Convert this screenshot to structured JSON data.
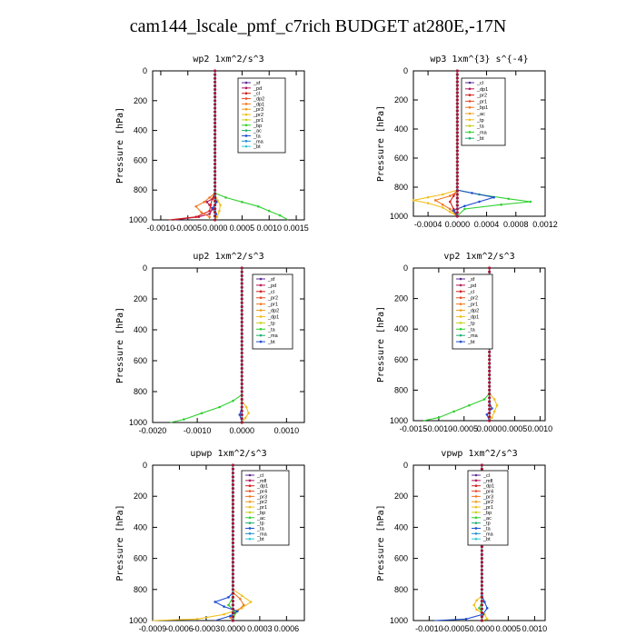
{
  "title": "cam144_lscale_pmf_c7rich  BUDGET at280E,-17N",
  "chart_data": [
    {
      "type": "line",
      "title": "wp2   1xm^2/s^3",
      "ylabel": "Pressure [hPa]",
      "ylim": [
        1000,
        0
      ],
      "yticks": [
        0,
        200,
        400,
        600,
        800,
        1000
      ],
      "xlim": [
        -0.00115,
        0.00165
      ],
      "xticks": [
        -0.001,
        -0.0005,
        0.0,
        0.0005,
        0.001,
        0.0015
      ],
      "xticklabels": [
        "-0.0010",
        "-0.0005",
        "0.0000",
        "0.0005",
        "0.0010",
        "0.0015"
      ],
      "legend": [
        "_sf",
        "_pd",
        "_cl",
        "_dp2",
        "_dp1",
        "_pr3",
        "_pr2",
        "_pr1",
        "_bp",
        "_ac",
        "_ta",
        "_ma",
        "_bt"
      ],
      "series": [
        {
          "name": "_sf",
          "color": "#5a2d91",
          "pressure": [
            0,
            820,
            860,
            900,
            940,
            970,
            1000
          ],
          "x": [
            0,
            0,
            0,
            0,
            0,
            0,
            0
          ]
        },
        {
          "name": "_pd",
          "color": "#b4185c",
          "pressure": [
            0,
            820,
            860,
            880,
            900,
            930,
            960,
            980,
            1000
          ],
          "x": [
            0,
            0,
            -5e-05,
            -0.00015,
            -0.0001,
            -5e-05,
            -0.0001,
            -0.0003,
            -0.00075
          ]
        },
        {
          "name": "_cl",
          "color": "#d42020",
          "pressure": [
            0,
            820,
            860,
            900,
            940,
            980,
            1000
          ],
          "x": [
            0,
            0,
            -5e-05,
            -8e-05,
            -0.0001,
            -0.00035,
            -0.00085
          ]
        },
        {
          "name": "_dp2",
          "color": "#f07820",
          "pressure": [
            0,
            820,
            850,
            880,
            910,
            950,
            980,
            1000
          ],
          "x": [
            0,
            0,
            -0.0001,
            -0.0002,
            -0.00035,
            -0.00025,
            -0.0001,
            -0.0001
          ]
        },
        {
          "name": "_pr2",
          "color": "#f0c020",
          "pressure": [
            0,
            830,
            870,
            900,
            940,
            980,
            1000
          ],
          "x": [
            0,
            0,
            5e-05,
            0.0001,
            8e-05,
            4e-05,
            0
          ]
        },
        {
          "name": "_bp",
          "color": "#30d030",
          "pressure": [
            0,
            820,
            850,
            880,
            910,
            940,
            970,
            1000
          ],
          "x": [
            0,
            0,
            0.0002,
            0.0005,
            0.0008,
            0.001,
            0.0012,
            0.00135
          ]
        },
        {
          "name": "_ta",
          "color": "#1f4fd0",
          "pressure": [
            0,
            840,
            880,
            920,
            960,
            1000
          ],
          "x": [
            0,
            0,
            3e-05,
            -4e-05,
            2e-05,
            0
          ]
        },
        {
          "name": "_bt",
          "color": "#30c8d8",
          "pressure": [
            0,
            1000
          ],
          "x": [
            0,
            0
          ]
        }
      ]
    },
    {
      "type": "line",
      "title": "wp3   1xm^{3} s^{-4}",
      "ylabel": "Pressure [hPa]",
      "ylim": [
        1000,
        0
      ],
      "yticks": [
        0,
        200,
        400,
        600,
        800,
        1000
      ],
      "xlim": [
        -0.0006,
        0.0012
      ],
      "xticks": [
        -0.0004,
        0.0,
        0.0004,
        0.0008,
        0.0012
      ],
      "xticklabels": [
        "-0.0004",
        "0.0000",
        "0.0004",
        "0.0008",
        "0.0012"
      ],
      "legend": [
        "_cl",
        "_dp1",
        "_pr2",
        "_pr1",
        "_bp1",
        "_ac",
        "_tp",
        "_ta",
        "_ma",
        "_bt"
      ],
      "series": [
        {
          "name": "_cl",
          "color": "#d42020",
          "pressure": [
            0,
            820,
            860,
            900,
            950,
            1000
          ],
          "x": [
            0,
            0,
            -5e-05,
            -0.0001,
            -5e-05,
            0
          ]
        },
        {
          "name": "_pr2",
          "color": "#f0c020",
          "pressure": [
            0,
            820,
            850,
            870,
            890,
            910,
            940,
            970,
            1000
          ],
          "x": [
            0,
            0,
            -0.0002,
            -0.0004,
            -0.0006,
            -0.0004,
            -0.0002,
            -0.0001,
            0
          ]
        },
        {
          "name": "_pr1",
          "color": "#f07820",
          "pressure": [
            0,
            830,
            860,
            890,
            920,
            950,
            1000
          ],
          "x": [
            0,
            0,
            -0.0001,
            -0.0003,
            -0.0002,
            -0.0001,
            0
          ]
        },
        {
          "name": "_bp1",
          "color": "#30d030",
          "pressure": [
            0,
            820,
            850,
            880,
            900,
            920,
            950,
            1000
          ],
          "x": [
            0,
            0,
            0.0003,
            0.0007,
            0.001,
            0.0006,
            0.0001,
            0
          ]
        },
        {
          "name": "_tp",
          "color": "#1f4fd0",
          "pressure": [
            0,
            820,
            840,
            870,
            900,
            930,
            960,
            1000
          ],
          "x": [
            0,
            0,
            0.0002,
            0.0005,
            0.0003,
            0.0001,
            -5e-05,
            0
          ]
        },
        {
          "name": "_bt",
          "color": "#30c8d8",
          "pressure": [
            0,
            1000
          ],
          "x": [
            0,
            0
          ]
        }
      ]
    },
    {
      "type": "line",
      "title": "up2   1xm^2/s^3",
      "ylabel": "Pressure [hPa]",
      "ylim": [
        1000,
        0
      ],
      "yticks": [
        0,
        200,
        400,
        600,
        800,
        1000
      ],
      "xlim": [
        -0.002,
        0.0014
      ],
      "xticks": [
        -0.002,
        -0.001,
        0.0,
        0.001
      ],
      "xticklabels": [
        "-0.0020",
        "-0.0010",
        "0.0000",
        "0.0010"
      ],
      "legend": [
        "_sf",
        "_pd",
        "_cl",
        "_pr2",
        "_pr1",
        "_dp2",
        "_dp1",
        "_tp",
        "_ta",
        "_ma",
        "_bt"
      ],
      "series": [
        {
          "name": "_sf",
          "color": "#5a2d91",
          "pressure": [
            0,
            1000
          ],
          "x": [
            0,
            0
          ]
        },
        {
          "name": "_pd",
          "color": "#d42020",
          "pressure": [
            0,
            1000
          ],
          "x": [
            0,
            0
          ]
        },
        {
          "name": "_pr1",
          "color": "#f0c020",
          "pressure": [
            0,
            860,
            900,
            940,
            970,
            1000
          ],
          "x": [
            0,
            0,
            0.0001,
            0.00015,
            8e-05,
            0
          ]
        },
        {
          "name": "_dp2",
          "color": "#30d030",
          "pressure": [
            0,
            820,
            860,
            900,
            940,
            980,
            1000
          ],
          "x": [
            0,
            0,
            -0.0002,
            -0.0005,
            -0.0009,
            -0.0013,
            -0.0016
          ]
        },
        {
          "name": "_ta",
          "color": "#1f4fd0",
          "pressure": [
            0,
            900,
            950,
            1000
          ],
          "x": [
            0,
            0,
            -5e-05,
            0
          ]
        },
        {
          "name": "_bt",
          "color": "#30c8d8",
          "pressure": [
            0,
            1000
          ],
          "x": [
            0,
            0
          ]
        }
      ]
    },
    {
      "type": "line",
      "title": "vp2   1xm^2/s^3",
      "ylabel": "Pressure [hPa]",
      "ylim": [
        1000,
        0
      ],
      "yticks": [
        0,
        200,
        400,
        600,
        800,
        1000
      ],
      "xlim": [
        -0.0015,
        0.0011
      ],
      "xticks": [
        -0.0015,
        -0.001,
        -0.0005,
        0.0,
        0.0005,
        0.001
      ],
      "xticklabels": [
        "-0.0015",
        "-0.0010",
        "-0.0005",
        "0.0000",
        "0.0005",
        "0.0010"
      ],
      "legend": [
        "_sf",
        "_pd",
        "_cl",
        "_pr2",
        "_pr1",
        "_dp2",
        "_dp1",
        "_tp",
        "_ta",
        "_ma",
        "_bt"
      ],
      "series": [
        {
          "name": "_sf",
          "color": "#5a2d91",
          "pressure": [
            0,
            1000
          ],
          "x": [
            0,
            0
          ]
        },
        {
          "name": "_pd",
          "color": "#d42020",
          "pressure": [
            0,
            1000
          ],
          "x": [
            0,
            0
          ]
        },
        {
          "name": "_pr1",
          "color": "#f0c020",
          "pressure": [
            0,
            150,
            200,
            250,
            820,
            860,
            900,
            940,
            980,
            1000
          ],
          "x": [
            0,
            0,
            3e-05,
            0,
            0,
            0.0001,
            0.00015,
            0.0001,
            5e-05,
            0
          ]
        },
        {
          "name": "_dp2",
          "color": "#30d030",
          "pressure": [
            0,
            820,
            860,
            900,
            940,
            980,
            1000
          ],
          "x": [
            0,
            0,
            -0.0001,
            -0.0004,
            -0.0007,
            -0.001,
            -0.0013
          ]
        },
        {
          "name": "_ta",
          "color": "#1f4fd0",
          "pressure": [
            0,
            880,
            920,
            960,
            1000
          ],
          "x": [
            0,
            0,
            5e-05,
            -5e-05,
            0
          ]
        },
        {
          "name": "_bt",
          "color": "#30c8d8",
          "pressure": [
            0,
            1000
          ],
          "x": [
            0,
            0
          ]
        }
      ]
    },
    {
      "type": "line",
      "title": "upwp   1xm^2/s^3",
      "ylabel": "Pressure [hPa]",
      "ylim": [
        1000,
        0
      ],
      "yticks": [
        0,
        200,
        400,
        600,
        800,
        1000
      ],
      "xlim": [
        -0.0009,
        0.0008
      ],
      "xticks": [
        -0.0009,
        -0.0006,
        -0.0003,
        0.0,
        0.0003,
        0.0006
      ],
      "xticklabels": [
        "-0.0009",
        "-0.0006",
        "-0.0003",
        "0.0000",
        "0.0003",
        "0.0006"
      ],
      "legend": [
        "_cl",
        "_mfl",
        "_dp1",
        "_pr4",
        "_pr3",
        "_pr2",
        "_pr1",
        "_bp",
        "_ac",
        "_tp",
        "_ta",
        "_ma",
        "_bt"
      ],
      "series": [
        {
          "name": "_cl",
          "color": "#5a2d91",
          "pressure": [
            0,
            1000
          ],
          "x": [
            0,
            0
          ]
        },
        {
          "name": "_dp1",
          "color": "#d42020",
          "pressure": [
            0,
            1000
          ],
          "x": [
            0,
            0
          ]
        },
        {
          "name": "_pr1",
          "color": "#f0c020",
          "pressure": [
            0,
            800,
            840,
            880,
            920,
            960,
            990,
            1000
          ],
          "x": [
            0,
            0,
            0.0001,
            0.0002,
            0.0001,
            -0.0001,
            -0.0004,
            -0.0009
          ]
        },
        {
          "name": "_pr2",
          "color": "#f07820",
          "pressure": [
            0,
            820,
            860,
            900,
            940,
            980,
            1000
          ],
          "x": [
            0,
            0,
            8e-05,
            0.00012,
            5e-05,
            -3e-05,
            0
          ]
        },
        {
          "name": "_bp",
          "color": "#30d030",
          "pressure": [
            0,
            850,
            900,
            950,
            1000
          ],
          "x": [
            0,
            0,
            -5e-05,
            3e-05,
            0
          ]
        },
        {
          "name": "_tp",
          "color": "#1f4fd0",
          "pressure": [
            0,
            820,
            850,
            880,
            910,
            940,
            970,
            1000
          ],
          "x": [
            0,
            0,
            -5e-05,
            -0.0002,
            -0.0001,
            5e-05,
            -3e-05,
            -0.0002
          ]
        },
        {
          "name": "_bt",
          "color": "#30c8d8",
          "pressure": [
            0,
            1000
          ],
          "x": [
            0,
            0
          ]
        }
      ]
    },
    {
      "type": "line",
      "title": "vpwp   1xm^2/s^3",
      "ylabel": "Pressure [hPa]",
      "ylim": [
        1000,
        0
      ],
      "yticks": [
        0,
        200,
        400,
        600,
        800,
        1000
      ],
      "xlim": [
        -0.0013,
        0.0012
      ],
      "xticks": [
        -0.001,
        -0.0005,
        0.0,
        0.0005,
        0.001
      ],
      "xticklabels": [
        "-0.0010",
        "-0.0005",
        "0.0000",
        "0.0005",
        "0.0010"
      ],
      "legend": [
        "_cl",
        "_mfl",
        "_dp1",
        "_pr4",
        "_pr3",
        "_pr2",
        "_pr1",
        "_bp",
        "_ac",
        "_tp",
        "_ta",
        "_ma",
        "_bt"
      ],
      "series": [
        {
          "name": "_cl",
          "color": "#5a2d91",
          "pressure": [
            0,
            1000
          ],
          "x": [
            0,
            0
          ]
        },
        {
          "name": "_dp1",
          "color": "#d42020",
          "pressure": [
            0,
            1000
          ],
          "x": [
            0,
            0
          ]
        },
        {
          "name": "_pr1",
          "color": "#f0c020",
          "pressure": [
            0,
            840,
            870,
            900,
            930,
            960,
            990,
            1000
          ],
          "x": [
            0,
            0,
            -0.0001,
            -0.00015,
            -0.0001,
            5e-05,
            0.0001,
            0
          ]
        },
        {
          "name": "_bp",
          "color": "#30d030",
          "pressure": [
            0,
            880,
            920,
            960,
            1000
          ],
          "x": [
            0,
            0,
            -5e-05,
            2e-05,
            0
          ]
        },
        {
          "name": "_tp",
          "color": "#1f4fd0",
          "pressure": [
            0,
            840,
            880,
            920,
            960,
            990,
            1000
          ],
          "x": [
            0,
            0,
            5e-05,
            0.0001,
            2e-05,
            -0.0003,
            -0.0009
          ]
        },
        {
          "name": "_bt",
          "color": "#30c8d8",
          "pressure": [
            0,
            1000
          ],
          "x": [
            0,
            0
          ]
        }
      ]
    }
  ]
}
